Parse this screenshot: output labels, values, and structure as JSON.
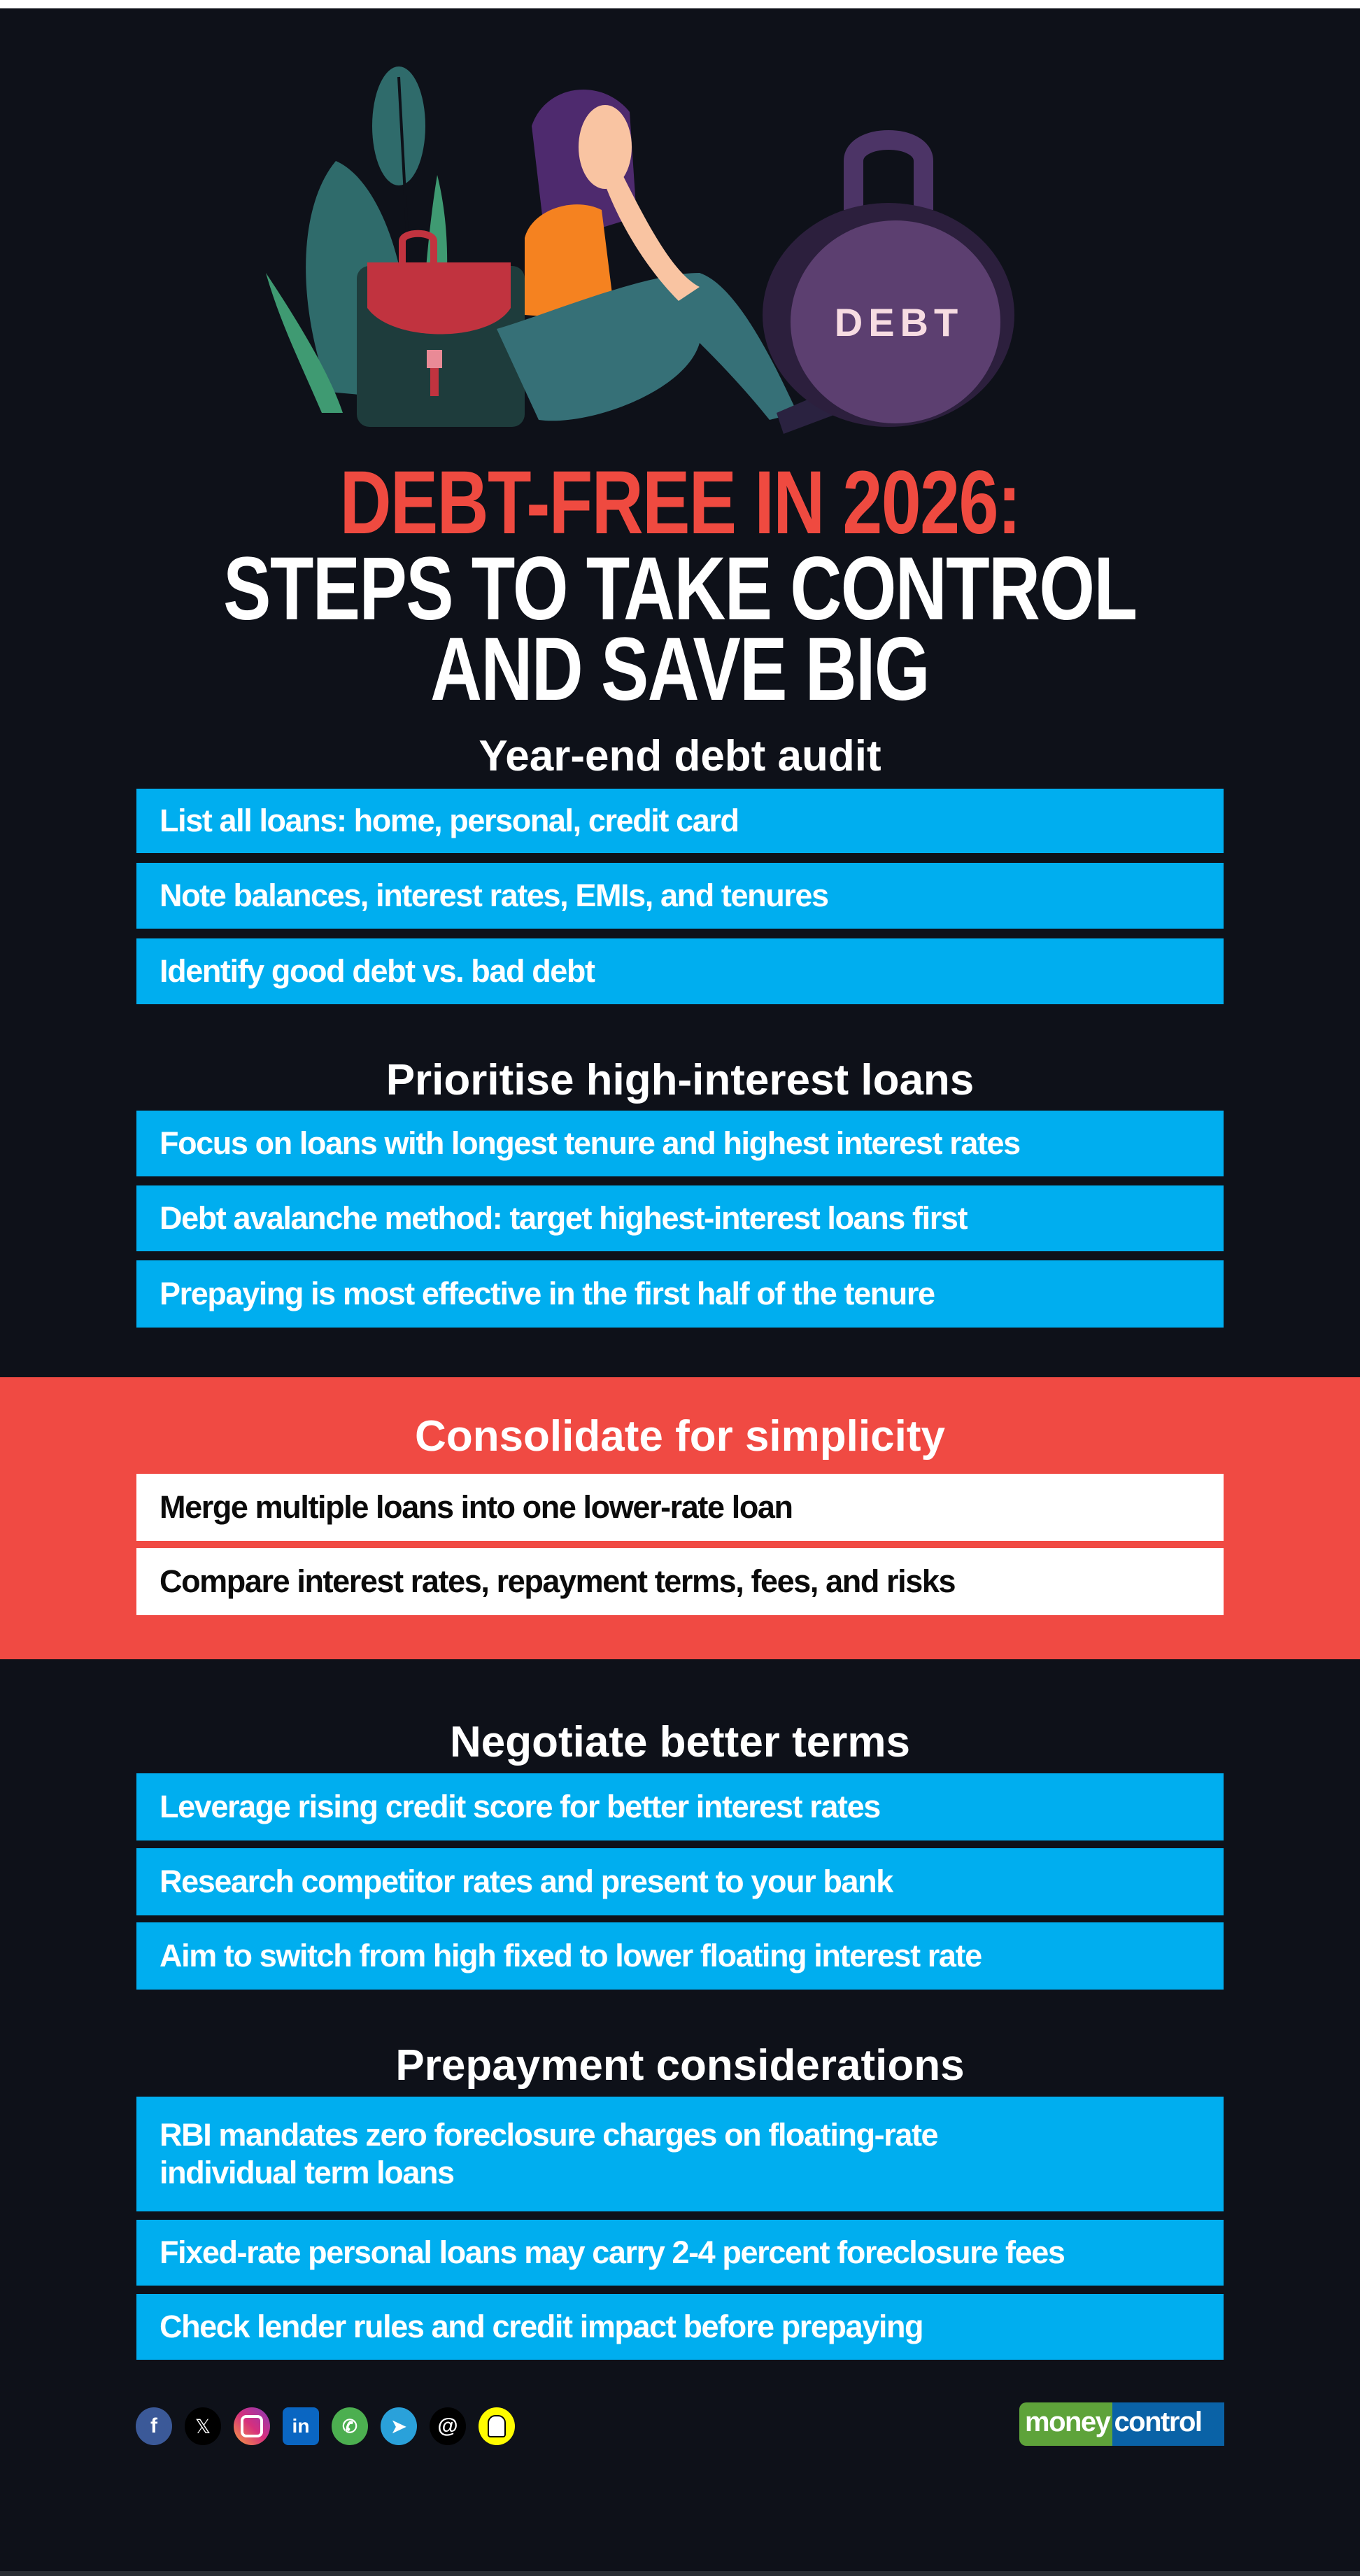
{
  "illustration": {
    "kettlebell_label": "DEBT"
  },
  "title": {
    "line1": "DEBT-FREE IN 2026:",
    "line2": "STEPS TO TAKE CONTROL",
    "line3": "AND SAVE BIG"
  },
  "sections": [
    {
      "heading": "Year-end debt audit",
      "items": [
        "List all loans: home, personal, credit card",
        "Note balances, interest rates, EMIs, and tenures",
        "Identify good debt vs. bad debt"
      ]
    },
    {
      "heading": "Prioritise high-interest loans",
      "items": [
        "Focus on loans with longest tenure and highest interest rates",
        "Debt avalanche method: target highest-interest loans first",
        "Prepaying is most effective in the first half of the tenure"
      ]
    },
    {
      "heading": "Consolidate for simplicity",
      "items": [
        "Merge multiple loans into one lower-rate loan",
        "Compare interest rates, repayment terms, fees, and risks"
      ]
    },
    {
      "heading": "Negotiate better terms",
      "items": [
        "Leverage rising credit score for better interest rates",
        "Research competitor rates and present to your bank",
        "Aim to switch from high fixed to lower floating interest rate"
      ]
    },
    {
      "heading": "Prepayment considerations",
      "items": [
        "RBI mandates zero foreclosure charges on floating-rate individual term loans",
        "Fixed-rate personal loans may carry 2-4 percent foreclosure fees",
        "Check lender rules and credit impact before prepaying"
      ]
    }
  ],
  "footer": {
    "social_icons": [
      "facebook-icon",
      "x-icon",
      "instagram-icon",
      "linkedin-icon",
      "whatsapp-icon",
      "telegram-icon",
      "threads-icon",
      "snapchat-icon"
    ],
    "logo": {
      "part1": "money",
      "part2": "control"
    }
  },
  "colors": {
    "background": "#0e1119",
    "accent_red": "#f04a43",
    "box_blue": "#00aeef",
    "title_red": "#ef4a40"
  }
}
